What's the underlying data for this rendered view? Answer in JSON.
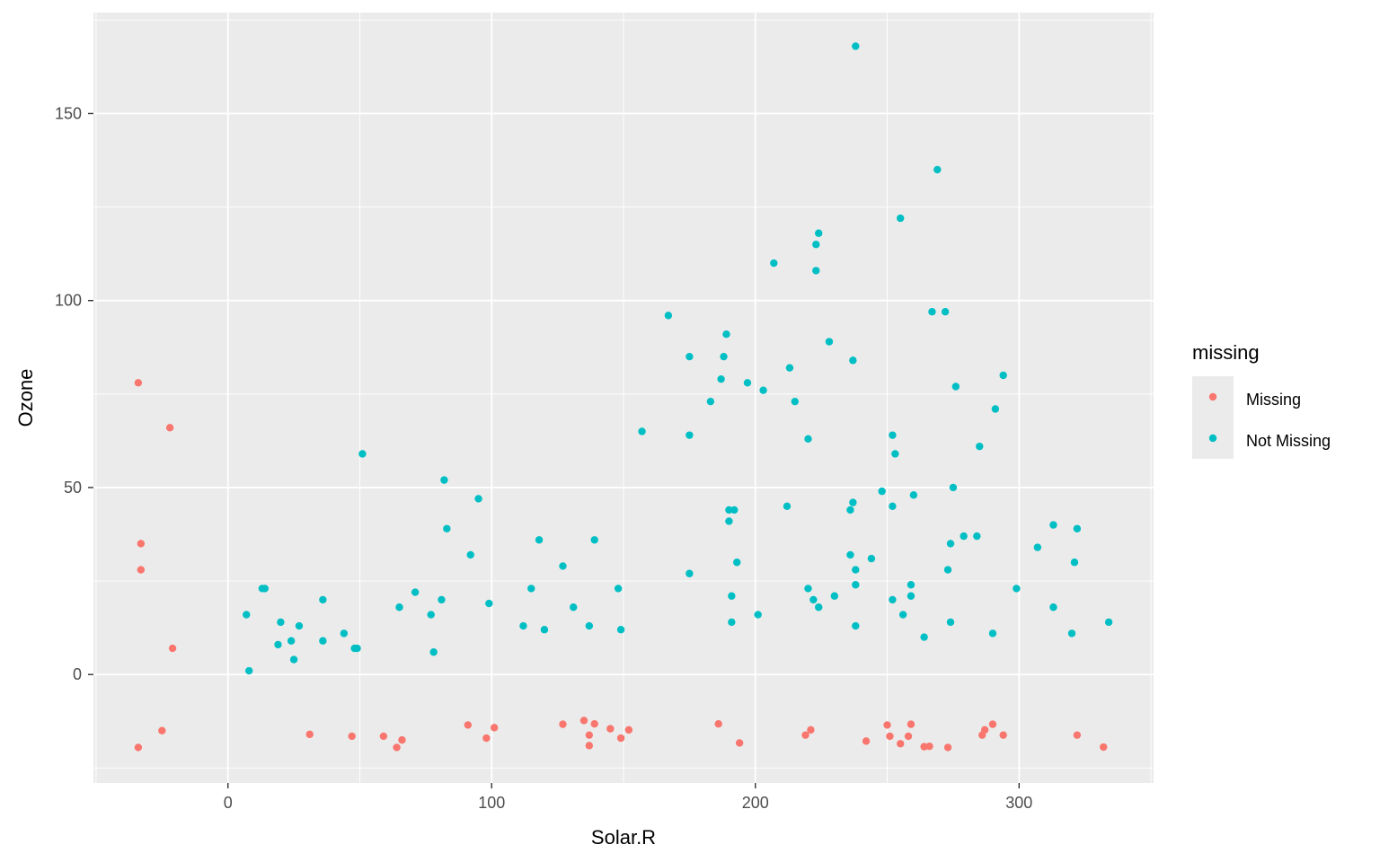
{
  "chart_data": {
    "type": "scatter",
    "title": "",
    "xlabel": "Solar.R",
    "ylabel": "Ozone",
    "xlim": [
      -51,
      351
    ],
    "ylim": [
      -29,
      177
    ],
    "xticks": [
      0,
      100,
      200,
      300
    ],
    "yticks": [
      0,
      50,
      100,
      150
    ],
    "xtick_labels": [
      "0",
      "100",
      "200",
      "300"
    ],
    "ytick_labels": [
      "0",
      "50",
      "100",
      "150"
    ],
    "grid": true,
    "panel_background": "#EBEBEB",
    "legend": {
      "title": "missing",
      "position": "right",
      "entries": [
        "Missing",
        "Not Missing"
      ]
    },
    "series": [
      {
        "name": "Missing",
        "color": "#F8766D",
        "points": [
          [
            -34,
            78
          ],
          [
            -22,
            66
          ],
          [
            -33,
            35
          ],
          [
            -33,
            28
          ],
          [
            -21,
            7
          ],
          [
            -34,
            -19.5
          ],
          [
            -25,
            -15
          ],
          [
            31,
            -16
          ],
          [
            47,
            -16.5
          ],
          [
            59,
            -16.5
          ],
          [
            64,
            -19.5
          ],
          [
            66,
            -17.5
          ],
          [
            91,
            -13.5
          ],
          [
            98,
            -17
          ],
          [
            101,
            -14.2
          ],
          [
            127,
            -13.3
          ],
          [
            135,
            -12.3
          ],
          [
            137,
            -16.2
          ],
          [
            137,
            -19
          ],
          [
            139,
            -13.2
          ],
          [
            145,
            -14.5
          ],
          [
            149,
            -17
          ],
          [
            152,
            -14.8
          ],
          [
            186,
            -13.2
          ],
          [
            194,
            -18.3
          ],
          [
            219,
            -16.2
          ],
          [
            221,
            -14.8
          ],
          [
            242,
            -17.8
          ],
          [
            250,
            -13.5
          ],
          [
            251,
            -16.5
          ],
          [
            255,
            -18.5
          ],
          [
            258,
            -16.5
          ],
          [
            259,
            -13.3
          ],
          [
            264,
            -19.3
          ],
          [
            266,
            -19.2
          ],
          [
            273,
            -19.5
          ],
          [
            286,
            -16.2
          ],
          [
            287,
            -14.8
          ],
          [
            290,
            -13.3
          ],
          [
            294,
            -16.2
          ],
          [
            322,
            -16.2
          ],
          [
            332,
            -19.4
          ]
        ]
      },
      {
        "name": "Not Missing",
        "color": "#00BFC4",
        "points": [
          [
            238,
            168
          ],
          [
            269,
            135
          ],
          [
            255,
            122
          ],
          [
            224,
            118
          ],
          [
            223,
            115
          ],
          [
            207,
            110
          ],
          [
            223,
            108
          ],
          [
            267,
            97
          ],
          [
            272,
            97
          ],
          [
            167,
            96
          ],
          [
            189,
            91
          ],
          [
            228,
            89
          ],
          [
            175,
            85
          ],
          [
            188,
            85
          ],
          [
            237,
            84
          ],
          [
            213,
            82
          ],
          [
            294,
            80
          ],
          [
            187,
            79
          ],
          [
            197,
            78
          ],
          [
            276,
            77
          ],
          [
            203,
            76
          ],
          [
            183,
            73
          ],
          [
            215,
            73
          ],
          [
            291,
            71
          ],
          [
            157,
            65
          ],
          [
            175,
            64
          ],
          [
            252,
            64
          ],
          [
            220,
            63
          ],
          [
            285,
            61
          ],
          [
            51,
            59
          ],
          [
            253,
            59
          ],
          [
            82,
            52
          ],
          [
            275,
            50
          ],
          [
            248,
            49
          ],
          [
            260,
            48
          ],
          [
            95,
            47
          ],
          [
            237,
            46
          ],
          [
            212,
            45
          ],
          [
            252,
            45
          ],
          [
            236,
            44
          ],
          [
            190,
            44
          ],
          [
            192,
            44
          ],
          [
            190,
            41
          ],
          [
            313,
            40
          ],
          [
            83,
            39
          ],
          [
            322,
            39
          ],
          [
            279,
            37
          ],
          [
            284,
            37
          ],
          [
            118,
            36
          ],
          [
            139,
            36
          ],
          [
            274,
            35
          ],
          [
            307,
            34
          ],
          [
            92,
            32
          ],
          [
            236,
            32
          ],
          [
            244,
            31
          ],
          [
            193,
            30
          ],
          [
            321,
            30
          ],
          [
            127,
            29
          ],
          [
            238,
            28
          ],
          [
            273,
            28
          ],
          [
            175,
            27
          ],
          [
            238,
            24
          ],
          [
            259,
            24
          ],
          [
            13,
            23
          ],
          [
            14,
            23
          ],
          [
            115,
            23
          ],
          [
            148,
            23
          ],
          [
            220,
            23
          ],
          [
            299,
            23
          ],
          [
            71,
            22
          ],
          [
            191,
            21
          ],
          [
            230,
            21
          ],
          [
            259,
            21
          ],
          [
            36,
            20
          ],
          [
            81,
            20
          ],
          [
            222,
            20
          ],
          [
            252,
            20
          ],
          [
            99,
            19
          ],
          [
            65,
            18
          ],
          [
            131,
            18
          ],
          [
            224,
            18
          ],
          [
            313,
            18
          ],
          [
            77,
            16
          ],
          [
            201,
            16
          ],
          [
            256,
            16
          ],
          [
            7,
            16
          ],
          [
            20,
            14
          ],
          [
            191,
            14
          ],
          [
            274,
            14
          ],
          [
            334,
            14
          ],
          [
            27,
            13
          ],
          [
            112,
            13
          ],
          [
            137,
            13
          ],
          [
            238,
            13
          ],
          [
            120,
            12
          ],
          [
            149,
            12
          ],
          [
            44,
            11
          ],
          [
            290,
            11
          ],
          [
            320,
            11
          ],
          [
            264,
            10
          ],
          [
            24,
            9
          ],
          [
            36,
            9
          ],
          [
            19,
            8
          ],
          [
            48,
            7
          ],
          [
            49,
            7
          ],
          [
            78,
            6
          ],
          [
            25,
            4
          ],
          [
            8,
            1
          ]
        ]
      }
    ]
  }
}
